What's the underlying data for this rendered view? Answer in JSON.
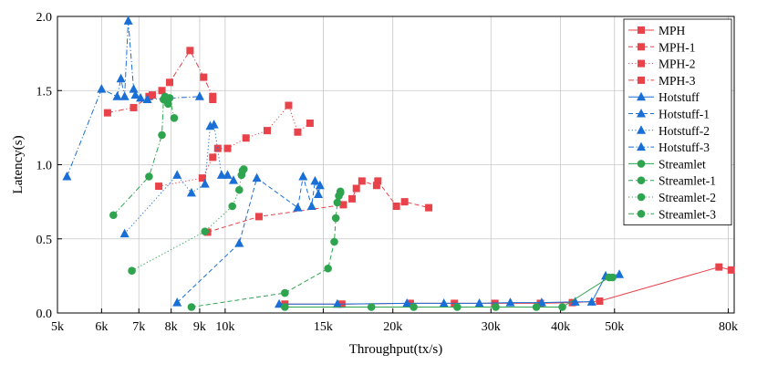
{
  "chart_data": {
    "type": "scatter",
    "title": "",
    "xlabel": "Throughput(tx/s)",
    "ylabel": "Latency(s)",
    "xscale": "log",
    "xlim": [
      5000,
      82000
    ],
    "ylim": [
      0,
      2.0
    ],
    "grid": true,
    "legend_position": "top-right",
    "x_ticks": [
      {
        "value": 5000,
        "label": "5k"
      },
      {
        "value": 6000,
        "label": "6k"
      },
      {
        "value": 7000,
        "label": "7k"
      },
      {
        "value": 8000,
        "label": "8k"
      },
      {
        "value": 9000,
        "label": "9k"
      },
      {
        "value": 10000,
        "label": "10k"
      },
      {
        "value": 15000,
        "label": "15k"
      },
      {
        "value": 20000,
        "label": "20k"
      },
      {
        "value": 30000,
        "label": "30k"
      },
      {
        "value": 40000,
        "label": "40k"
      },
      {
        "value": 50000,
        "label": "50k"
      },
      {
        "value": 80000,
        "label": "80k"
      }
    ],
    "y_ticks": [
      {
        "value": 0,
        "label": "0.0"
      },
      {
        "value": 0.5,
        "label": "0.5"
      },
      {
        "value": 1.0,
        "label": "1.0"
      },
      {
        "value": 1.5,
        "label": "1.5"
      },
      {
        "value": 2.0,
        "label": "2.0"
      }
    ],
    "series": [
      {
        "name": "MPH",
        "color": "#e8424a",
        "marker": "square",
        "dash": "solid",
        "points": [
          [
            12800,
            0.06
          ],
          [
            16200,
            0.06
          ],
          [
            21500,
            0.065
          ],
          [
            25800,
            0.065
          ],
          [
            30500,
            0.065
          ],
          [
            36800,
            0.065
          ],
          [
            42000,
            0.07
          ],
          [
            47000,
            0.08
          ],
          [
            77000,
            0.31
          ],
          [
            81000,
            0.29
          ]
        ]
      },
      {
        "name": "MPH-1",
        "color": "#e8424a",
        "marker": "square",
        "dash": "dashed",
        "points": [
          [
            9300,
            0.545
          ],
          [
            11500,
            0.65
          ],
          [
            16300,
            0.73
          ],
          [
            16900,
            0.77
          ],
          [
            17200,
            0.84
          ],
          [
            17600,
            0.89
          ],
          [
            18700,
            0.86
          ],
          [
            18800,
            0.89
          ],
          [
            20300,
            0.72
          ],
          [
            21000,
            0.75
          ],
          [
            23200,
            0.71
          ]
        ]
      },
      {
        "name": "MPH-2",
        "color": "#e8424a",
        "marker": "square",
        "dash": "dotted",
        "points": [
          [
            7600,
            0.855
          ],
          [
            9100,
            0.91
          ],
          [
            9500,
            1.05
          ],
          [
            9700,
            1.11
          ],
          [
            10100,
            1.11
          ],
          [
            10900,
            1.18
          ],
          [
            11900,
            1.23
          ],
          [
            13000,
            1.4
          ],
          [
            13500,
            1.22
          ],
          [
            14200,
            1.28
          ]
        ]
      },
      {
        "name": "MPH-3",
        "color": "#e8424a",
        "marker": "square",
        "dash": "dashdot",
        "points": [
          [
            6150,
            1.35
          ],
          [
            6850,
            1.385
          ],
          [
            7300,
            1.46
          ],
          [
            7400,
            1.47
          ],
          [
            7700,
            1.5
          ],
          [
            7950,
            1.555
          ],
          [
            8650,
            1.77
          ],
          [
            9150,
            1.59
          ],
          [
            9500,
            1.46
          ],
          [
            9500,
            1.44
          ]
        ]
      },
      {
        "name": "Hotstuff",
        "color": "#1a6fd6",
        "marker": "triangle",
        "dash": "solid",
        "points": [
          [
            12500,
            0.06
          ],
          [
            15900,
            0.06
          ],
          [
            21200,
            0.065
          ],
          [
            24700,
            0.065
          ],
          [
            28600,
            0.065
          ],
          [
            32500,
            0.07
          ],
          [
            37000,
            0.07
          ],
          [
            42500,
            0.075
          ],
          [
            45500,
            0.075
          ],
          [
            48200,
            0.25
          ],
          [
            51000,
            0.26
          ]
        ]
      },
      {
        "name": "Hotstuff-1",
        "color": "#1a6fd6",
        "marker": "triangle",
        "dash": "dashed",
        "points": [
          [
            8200,
            0.07
          ],
          [
            10600,
            0.47
          ],
          [
            11400,
            0.91
          ],
          [
            13500,
            0.71
          ],
          [
            13800,
            0.92
          ],
          [
            14300,
            0.72
          ],
          [
            14500,
            0.89
          ],
          [
            14700,
            0.8
          ],
          [
            14800,
            0.86
          ]
        ]
      },
      {
        "name": "Hotstuff-2",
        "color": "#1a6fd6",
        "marker": "triangle",
        "dash": "dotted",
        "points": [
          [
            6600,
            0.535
          ],
          [
            8200,
            0.93
          ],
          [
            8700,
            0.81
          ],
          [
            9200,
            0.87
          ],
          [
            9400,
            1.26
          ],
          [
            9550,
            1.27
          ],
          [
            9850,
            0.93
          ],
          [
            10100,
            0.93
          ],
          [
            10350,
            0.895
          ]
        ]
      },
      {
        "name": "Hotstuff-3",
        "color": "#1a6fd6",
        "marker": "triangle",
        "dash": "dashdot",
        "points": [
          [
            5200,
            0.92
          ],
          [
            6000,
            1.51
          ],
          [
            6400,
            1.46
          ],
          [
            6500,
            1.58
          ],
          [
            6600,
            1.46
          ],
          [
            6700,
            1.97
          ],
          [
            6850,
            1.51
          ],
          [
            6900,
            1.47
          ],
          [
            7050,
            1.45
          ],
          [
            7250,
            1.44
          ],
          [
            9000,
            1.46
          ]
        ]
      },
      {
        "name": "Streamlet",
        "color": "#2ea44f",
        "marker": "circle",
        "dash": "solid",
        "points": [
          [
            12800,
            0.04
          ],
          [
            18300,
            0.04
          ],
          [
            21800,
            0.04
          ],
          [
            26100,
            0.04
          ],
          [
            30600,
            0.04
          ],
          [
            36200,
            0.04
          ],
          [
            40300,
            0.04
          ],
          [
            48900,
            0.24
          ],
          [
            49600,
            0.24
          ]
        ]
      },
      {
        "name": "Streamlet-1",
        "color": "#2ea44f",
        "marker": "circle",
        "dash": "dashed",
        "points": [
          [
            8700,
            0.04
          ],
          [
            12800,
            0.135
          ],
          [
            15300,
            0.3
          ],
          [
            15700,
            0.48
          ],
          [
            15800,
            0.64
          ],
          [
            15900,
            0.745
          ],
          [
            16000,
            0.79
          ],
          [
            16100,
            0.81
          ],
          [
            16100,
            0.82
          ]
        ]
      },
      {
        "name": "Streamlet-2",
        "color": "#2ea44f",
        "marker": "circle",
        "dash": "dotted",
        "points": [
          [
            6800,
            0.285
          ],
          [
            9200,
            0.55
          ],
          [
            10300,
            0.72
          ],
          [
            10600,
            0.83
          ],
          [
            10700,
            0.93
          ],
          [
            10750,
            0.96
          ],
          [
            10800,
            0.97
          ]
        ]
      },
      {
        "name": "Streamlet-3",
        "color": "#2ea44f",
        "marker": "circle",
        "dash": "dashdot",
        "points": [
          [
            6300,
            0.66
          ],
          [
            7300,
            0.92
          ],
          [
            7700,
            1.2
          ],
          [
            7750,
            1.44
          ],
          [
            7800,
            1.46
          ],
          [
            7850,
            1.44
          ],
          [
            7900,
            1.41
          ],
          [
            7950,
            1.45
          ],
          [
            8100,
            1.315
          ]
        ]
      }
    ]
  }
}
